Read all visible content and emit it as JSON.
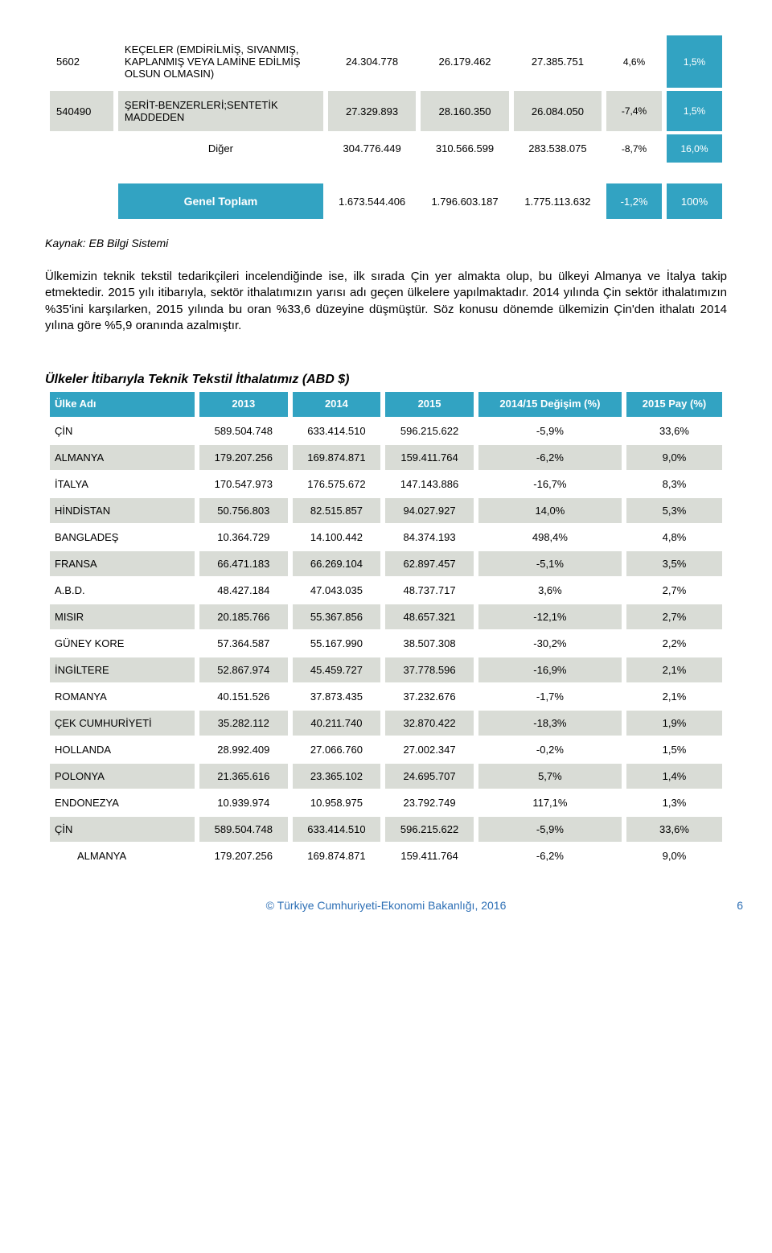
{
  "colors": {
    "teal": "#32a3c2",
    "grey": "#d9dcd6",
    "white": "#ffffff",
    "link_blue": "#2d6fb5",
    "text": "#000000"
  },
  "table1": {
    "rows": [
      {
        "code": "5602",
        "desc": "KEÇELER (EMDİRİLMİŞ, SIVANMIŞ, KAPLANMIŞ VEYA LAMİNE EDİLMİŞ OLSUN OLMASIN)",
        "v2013": "24.304.778",
        "v2014": "26.179.462",
        "v2015": "27.385.751",
        "chg": "4,6%",
        "share": "1,5%",
        "bg": "white"
      },
      {
        "code": "540490",
        "desc": "ŞERİT-BENZERLERİ;SENTETİK MADDEDEN",
        "v2013": "27.329.893",
        "v2014": "28.160.350",
        "v2015": "26.084.050",
        "chg": "-7,4%",
        "share": "1,5%",
        "bg": "grey"
      },
      {
        "code": "",
        "desc": "Diğer",
        "v2013": "304.776.449",
        "v2014": "310.566.599",
        "v2015": "283.538.075",
        "chg": "-8,7%",
        "share": "16,0%",
        "bg": "white",
        "indent": true
      }
    ],
    "totals": {
      "label": "Genel Toplam",
      "v2013": "1.673.544.406",
      "v2014": "1.796.603.187",
      "v2015": "1.775.113.632",
      "chg": "-1,2%",
      "share": "100%"
    }
  },
  "source_note": "Kaynak: EB Bilgi Sistemi",
  "body_text": "Ülkemizin teknik tekstil tedarikçileri incelendiğinde ise, ilk sırada Çin yer almakta olup, bu ülkeyi Almanya ve İtalya takip etmektedir. 2015 yılı itibarıyla, sektör ithalatımızın yarısı adı geçen ülkelere yapılmaktadır. 2014 yılında Çin sektör ithalatımızın %35'ini karşılarken, 2015 yılında bu oran %33,6 düzeyine düşmüştür. Söz konusu dönemde ülkemizin Çin'den ithalatı 2014 yılına göre %5,9 oranında azalmıştır.",
  "table2": {
    "title": "Ülkeler İtibarıyla Teknik Tekstil İthalatımız (ABD $)",
    "columns": [
      "Ülke Adı",
      "2013",
      "2014",
      "2015",
      "2014/15 Değişim (%)",
      "2015 Pay (%)"
    ],
    "rows": [
      {
        "c": "ÇİN",
        "v13": "589.504.748",
        "v14": "633.414.510",
        "v15": "596.215.622",
        "chg": "-5,9%",
        "share": "33,6%"
      },
      {
        "c": "ALMANYA",
        "v13": "179.207.256",
        "v14": "169.874.871",
        "v15": "159.411.764",
        "chg": "-6,2%",
        "share": "9,0%"
      },
      {
        "c": "İTALYA",
        "v13": "170.547.973",
        "v14": "176.575.672",
        "v15": "147.143.886",
        "chg": "-16,7%",
        "share": "8,3%"
      },
      {
        "c": "HİNDİSTAN",
        "v13": "50.756.803",
        "v14": "82.515.857",
        "v15": "94.027.927",
        "chg": "14,0%",
        "share": "5,3%"
      },
      {
        "c": "BANGLADEŞ",
        "v13": "10.364.729",
        "v14": "14.100.442",
        "v15": "84.374.193",
        "chg": "498,4%",
        "share": "4,8%"
      },
      {
        "c": "FRANSA",
        "v13": "66.471.183",
        "v14": "66.269.104",
        "v15": "62.897.457",
        "chg": "-5,1%",
        "share": "3,5%"
      },
      {
        "c": "A.B.D.",
        "v13": "48.427.184",
        "v14": "47.043.035",
        "v15": "48.737.717",
        "chg": "3,6%",
        "share": "2,7%"
      },
      {
        "c": "MISIR",
        "v13": "20.185.766",
        "v14": "55.367.856",
        "v15": "48.657.321",
        "chg": "-12,1%",
        "share": "2,7%"
      },
      {
        "c": "GÜNEY KORE",
        "v13": "57.364.587",
        "v14": "55.167.990",
        "v15": "38.507.308",
        "chg": "-30,2%",
        "share": "2,2%"
      },
      {
        "c": "İNGİLTERE",
        "v13": "52.867.974",
        "v14": "45.459.727",
        "v15": "37.778.596",
        "chg": "-16,9%",
        "share": "2,1%"
      },
      {
        "c": "ROMANYA",
        "v13": "40.151.526",
        "v14": "37.873.435",
        "v15": "37.232.676",
        "chg": "-1,7%",
        "share": "2,1%"
      },
      {
        "c": "ÇEK CUMHURİYETİ",
        "v13": "35.282.112",
        "v14": "40.211.740",
        "v15": "32.870.422",
        "chg": "-18,3%",
        "share": "1,9%"
      },
      {
        "c": "HOLLANDA",
        "v13": "28.992.409",
        "v14": "27.066.760",
        "v15": "27.002.347",
        "chg": "-0,2%",
        "share": "1,5%"
      },
      {
        "c": "POLONYA",
        "v13": "21.365.616",
        "v14": "23.365.102",
        "v15": "24.695.707",
        "chg": "5,7%",
        "share": "1,4%"
      },
      {
        "c": "ENDONEZYA",
        "v13": "10.939.974",
        "v14": "10.958.975",
        "v15": "23.792.749",
        "chg": "117,1%",
        "share": "1,3%"
      },
      {
        "c": "ÇİN",
        "v13": "589.504.748",
        "v14": "633.414.510",
        "v15": "596.215.622",
        "chg": "-5,9%",
        "share": "33,6%"
      },
      {
        "c": "ALMANYA",
        "v13": "179.207.256",
        "v14": "169.874.871",
        "v15": "159.411.764",
        "chg": "-6,2%",
        "share": "9,0%",
        "indent": true
      }
    ]
  },
  "footer": {
    "copy": "© Türkiye Cumhuriyeti-Ekonomi Bakanlığı, 2016",
    "page": "6"
  }
}
